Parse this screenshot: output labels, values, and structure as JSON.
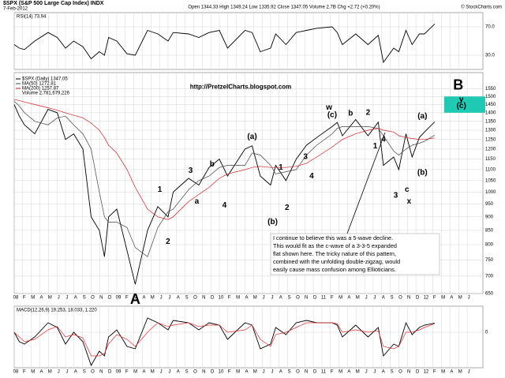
{
  "header": {
    "symbol": "$SPX (S&P 500 Large Cap Index) INDX",
    "date": "7-Feb-2012",
    "quote": "Open 1344.33  High 1349.24  Low 1335.92  Close 1347.05  Volume 2.7B  Chg +2.72 (+0.20%)",
    "source": "© StockCharts.com"
  },
  "chart_data": [
    {
      "type": "line",
      "panel": "rsi",
      "title": "RSI(14) 73.94",
      "x": [
        2008.0,
        2008.05,
        2008.1,
        2008.2,
        2008.33,
        2008.42,
        2008.5,
        2008.58,
        2008.67,
        2008.75,
        2008.83,
        2008.88,
        2008.92,
        2009.0,
        2009.1,
        2009.18,
        2009.3,
        2009.4,
        2009.5,
        2009.55,
        2009.7,
        2009.8,
        2009.9,
        2010.0,
        2010.08,
        2010.25,
        2010.32,
        2010.4,
        2010.5,
        2010.55,
        2010.65,
        2010.75,
        2010.85,
        2010.95,
        2011.1,
        2011.15,
        2011.2,
        2011.33,
        2011.45,
        2011.55,
        2011.6,
        2011.7,
        2011.75,
        2011.82,
        2011.88,
        2011.95,
        2012.0,
        2012.1
      ],
      "series": [
        {
          "name": "RSI(14)",
          "color": "#000000",
          "values": [
            45,
            40,
            38,
            50,
            62,
            55,
            40,
            50,
            42,
            25,
            35,
            30,
            55,
            50,
            32,
            30,
            65,
            60,
            50,
            62,
            60,
            55,
            62,
            65,
            40,
            65,
            62,
            35,
            40,
            60,
            45,
            62,
            65,
            68,
            70,
            62,
            45,
            60,
            45,
            58,
            20,
            40,
            35,
            65,
            45,
            60,
            60,
            74
          ]
        }
      ],
      "xlim": [
        2008.0,
        2012.57
      ],
      "ylim": [
        10,
        90
      ],
      "yticks": [
        {
          "value": 70,
          "label": "70.0"
        },
        {
          "value": 30,
          "label": "30.0"
        }
      ],
      "grid": true
    },
    {
      "type": "line",
      "panel": "price",
      "title": "$SPX (Daily) 1347.05",
      "log": true,
      "x": [
        2008.0,
        2008.05,
        2008.1,
        2008.2,
        2008.33,
        2008.42,
        2008.5,
        2008.58,
        2008.67,
        2008.75,
        2008.83,
        2008.88,
        2008.92,
        2009.0,
        2009.1,
        2009.18,
        2009.3,
        2009.4,
        2009.5,
        2009.55,
        2009.7,
        2009.8,
        2009.9,
        2010.0,
        2010.08,
        2010.25,
        2010.32,
        2010.4,
        2010.5,
        2010.55,
        2010.65,
        2010.75,
        2010.85,
        2010.95,
        2011.1,
        2011.15,
        2011.2,
        2011.33,
        2011.45,
        2011.55,
        2011.6,
        2011.7,
        2011.75,
        2011.82,
        2011.88,
        2011.95,
        2012.0,
        2012.1
      ],
      "series": [
        {
          "name": "$SPX (Daily) 1347.05",
          "color": "#000000",
          "values": [
            1450,
            1380,
            1330,
            1280,
            1420,
            1400,
            1250,
            1280,
            1200,
            900,
            850,
            760,
            900,
            930,
            780,
            676,
            850,
            940,
            900,
            1000,
            1060,
            1030,
            1110,
            1150,
            1070,
            1200,
            1217,
            1070,
            1030,
            1120,
            1050,
            1150,
            1220,
            1260,
            1320,
            1344,
            1270,
            1360,
            1270,
            1345,
            1120,
            1160,
            1100,
            1280,
            1160,
            1260,
            1290,
            1347
          ]
        },
        {
          "name": "MA(50) 1272.81",
          "color": "#444444",
          "values": [
            1470,
            1440,
            1400,
            1350,
            1330,
            1370,
            1380,
            1330,
            1280,
            1200,
            1000,
            900,
            880,
            880,
            860,
            790,
            760,
            860,
            920,
            930,
            1010,
            1050,
            1070,
            1110,
            1120,
            1120,
            1180,
            1170,
            1120,
            1080,
            1090,
            1100,
            1170,
            1220,
            1280,
            1310,
            1320,
            1320,
            1320,
            1310,
            1270,
            1190,
            1170,
            1200,
            1220,
            1230,
            1240,
            1273
          ]
        },
        {
          "name": "MA(200) 1257.87",
          "color": "#d02020",
          "values": [
            1480,
            1475,
            1465,
            1450,
            1430,
            1415,
            1400,
            1385,
            1370,
            1340,
            1300,
            1260,
            1220,
            1180,
            1100,
            1020,
            930,
            900,
            890,
            900,
            960,
            990,
            1020,
            1060,
            1080,
            1100,
            1110,
            1115,
            1110,
            1110,
            1110,
            1115,
            1130,
            1160,
            1210,
            1230,
            1250,
            1280,
            1300,
            1310,
            1300,
            1290,
            1270,
            1260,
            1255,
            1250,
            1250,
            1258
          ]
        }
      ],
      "volume_label": "Volume 2,781,679,226",
      "xlim": [
        2008.0,
        2012.57
      ],
      "ylim": [
        650,
        1660
      ],
      "yticks": [
        1550,
        1500,
        1450,
        1400,
        1350,
        1300,
        1250,
        1200,
        1150,
        1100,
        1050,
        1000,
        950,
        900,
        850,
        800,
        750,
        700,
        650
      ],
      "grid": true,
      "url": "http://PretzelCharts.blogspot.com",
      "target_zone": [
        1400,
        1500
      ],
      "annotations": [
        {
          "text": "A",
          "x": 2009.18,
          "y": 632,
          "color": "#e00000"
        },
        {
          "text": "B",
          "x": 2012.33,
          "y": 1570,
          "color": "#e00000"
        },
        {
          "text": "y",
          "x": 2012.36,
          "y": 1480,
          "color": "#1a1adc"
        },
        {
          "text": "(c)",
          "x": 2012.36,
          "y": 1440,
          "color": "#e00000"
        },
        {
          "text": "1",
          "x": 2009.42,
          "y": 1010,
          "color": "#1a1adc"
        },
        {
          "text": "2",
          "x": 2009.5,
          "y": 810,
          "color": "#1a1adc"
        },
        {
          "text": "3",
          "x": 2009.72,
          "y": 1095,
          "color": "#1a1adc"
        },
        {
          "text": "a",
          "x": 2009.78,
          "y": 960,
          "color": "#1a1adc"
        },
        {
          "text": "b",
          "x": 2009.93,
          "y": 1125,
          "color": "#1a1adc"
        },
        {
          "text": "4",
          "x": 2010.05,
          "y": 945,
          "color": "#1a1adc"
        },
        {
          "text": "(a)",
          "x": 2010.32,
          "y": 1265,
          "color": "#e00000"
        },
        {
          "text": "(b)",
          "x": 2010.52,
          "y": 880,
          "color": "#e00000"
        },
        {
          "text": "1",
          "x": 2010.6,
          "y": 1110,
          "color": "#1a1adc"
        },
        {
          "text": "2",
          "x": 2010.66,
          "y": 935,
          "color": "#1a1adc"
        },
        {
          "text": "3",
          "x": 2010.84,
          "y": 1160,
          "color": "#1a1adc"
        },
        {
          "text": "4",
          "x": 2010.9,
          "y": 1070,
          "color": "#1a1adc"
        },
        {
          "text": "w",
          "x": 2011.07,
          "y": 1430,
          "color": "#1a1adc"
        },
        {
          "text": "(c)",
          "x": 2011.1,
          "y": 1385,
          "color": "#e00000"
        },
        {
          "text": "b",
          "x": 2011.28,
          "y": 1395,
          "color": "#e00000"
        },
        {
          "text": "2",
          "x": 2011.45,
          "y": 1400,
          "color": "#1a1adc"
        },
        {
          "text": "1",
          "x": 2011.52,
          "y": 1215,
          "color": "#1a1adc"
        },
        {
          "text": "4",
          "x": 2011.6,
          "y": 1250,
          "color": "#1a1adc"
        },
        {
          "text": "3",
          "x": 2011.72,
          "y": 985,
          "color": "#1a1adc"
        },
        {
          "text": "c",
          "x": 2011.83,
          "y": 1010,
          "color": "#e00000"
        },
        {
          "text": "x",
          "x": 2011.85,
          "y": 960,
          "color": "#1a1adc"
        },
        {
          "text": "(a)",
          "x": 2011.98,
          "y": 1380,
          "color": "#e00000"
        },
        {
          "text": "(b)",
          "x": 2011.98,
          "y": 1085,
          "color": "#e00000"
        }
      ],
      "note": [
        "I continue to believe this was a 5-wave decline.",
        "This would fit as the c-wave of a 3-3-5 expanded",
        "flat shown here.  The tricky nature of this pattern,",
        "combined with the unfolding double-zigzag, would",
        "easily cause mass confusion among Ellioticians."
      ]
    },
    {
      "type": "line",
      "panel": "macd",
      "title": "MACD(12,26,9) 19.253, 18.033, 1.220",
      "x": [
        2008.0,
        2008.05,
        2008.1,
        2008.2,
        2008.33,
        2008.42,
        2008.5,
        2008.58,
        2008.67,
        2008.75,
        2008.83,
        2008.88,
        2008.92,
        2009.0,
        2009.1,
        2009.18,
        2009.3,
        2009.4,
        2009.5,
        2009.55,
        2009.7,
        2009.8,
        2009.9,
        2010.0,
        2010.08,
        2010.25,
        2010.32,
        2010.4,
        2010.5,
        2010.55,
        2010.65,
        2010.75,
        2010.85,
        2010.95,
        2011.1,
        2011.15,
        2011.2,
        2011.33,
        2011.45,
        2011.55,
        2011.6,
        2011.7,
        2011.75,
        2011.82,
        2011.88,
        2011.95,
        2012.0,
        2012.1
      ],
      "series": [
        {
          "name": "MACD",
          "color": "#000000",
          "values": [
            0,
            -20,
            -25,
            -10,
            20,
            10,
            -25,
            0,
            -20,
            -70,
            -40,
            -50,
            -10,
            5,
            -30,
            -35,
            30,
            20,
            5,
            25,
            20,
            5,
            20,
            15,
            -15,
            20,
            15,
            -35,
            -25,
            10,
            -5,
            20,
            25,
            20,
            20,
            15,
            -10,
            15,
            -10,
            10,
            -50,
            -25,
            -30,
            20,
            -5,
            10,
            15,
            19
          ]
        },
        {
          "name": "Signal",
          "color": "#e03030",
          "values": [
            0,
            -10,
            -20,
            -15,
            5,
            12,
            -10,
            -5,
            -12,
            -50,
            -50,
            -45,
            -25,
            -5,
            -15,
            -30,
            0,
            20,
            12,
            15,
            20,
            12,
            15,
            15,
            0,
            5,
            15,
            -15,
            -30,
            -5,
            0,
            10,
            20,
            20,
            20,
            18,
            0,
            5,
            0,
            3,
            -30,
            -35,
            -30,
            0,
            0,
            5,
            10,
            18
          ]
        }
      ],
      "xlim": [
        2008.0,
        2012.57
      ],
      "ylim": [
        -75,
        55
      ],
      "yticks": [
        0
      ],
      "grid": true
    }
  ],
  "xticks": [
    {
      "value": 2008.0,
      "label": "08"
    },
    {
      "value": 2008.083,
      "label": "F"
    },
    {
      "value": 2008.167,
      "label": "M"
    },
    {
      "value": 2008.25,
      "label": "A"
    },
    {
      "value": 2008.333,
      "label": "M"
    },
    {
      "value": 2008.417,
      "label": "J"
    },
    {
      "value": 2008.5,
      "label": "J"
    },
    {
      "value": 2008.583,
      "label": "A"
    },
    {
      "value": 2008.667,
      "label": "S"
    },
    {
      "value": 2008.75,
      "label": "O"
    },
    {
      "value": 2008.833,
      "label": "N"
    },
    {
      "value": 2008.917,
      "label": "D"
    },
    {
      "value": 2009.0,
      "label": "09"
    },
    {
      "value": 2009.083,
      "label": "F"
    },
    {
      "value": 2009.167,
      "label": "M"
    },
    {
      "value": 2009.25,
      "label": "A"
    },
    {
      "value": 2009.333,
      "label": "M"
    },
    {
      "value": 2009.417,
      "label": "J"
    },
    {
      "value": 2009.5,
      "label": "J"
    },
    {
      "value": 2009.583,
      "label": "A"
    },
    {
      "value": 2009.667,
      "label": "S"
    },
    {
      "value": 2009.75,
      "label": "O"
    },
    {
      "value": 2009.833,
      "label": "N"
    },
    {
      "value": 2009.917,
      "label": "D"
    },
    {
      "value": 2010.0,
      "label": "10"
    },
    {
      "value": 2010.083,
      "label": "F"
    },
    {
      "value": 2010.167,
      "label": "M"
    },
    {
      "value": 2010.25,
      "label": "A"
    },
    {
      "value": 2010.333,
      "label": "M"
    },
    {
      "value": 2010.417,
      "label": "J"
    },
    {
      "value": 2010.5,
      "label": "J"
    },
    {
      "value": 2010.583,
      "label": "A"
    },
    {
      "value": 2010.667,
      "label": "S"
    },
    {
      "value": 2010.75,
      "label": "O"
    },
    {
      "value": 2010.833,
      "label": "N"
    },
    {
      "value": 2010.917,
      "label": "D"
    },
    {
      "value": 2011.0,
      "label": "11"
    },
    {
      "value": 2011.083,
      "label": "F"
    },
    {
      "value": 2011.167,
      "label": "M"
    },
    {
      "value": 2011.25,
      "label": "A"
    },
    {
      "value": 2011.333,
      "label": "M"
    },
    {
      "value": 2011.417,
      "label": "J"
    },
    {
      "value": 2011.5,
      "label": "J"
    },
    {
      "value": 2011.583,
      "label": "A"
    },
    {
      "value": 2011.667,
      "label": "S"
    },
    {
      "value": 2011.75,
      "label": "O"
    },
    {
      "value": 2011.833,
      "label": "N"
    },
    {
      "value": 2011.917,
      "label": "D"
    },
    {
      "value": 2012.0,
      "label": "12"
    },
    {
      "value": 2012.083,
      "label": "F"
    },
    {
      "value": 2012.167,
      "label": "M"
    },
    {
      "value": 2012.25,
      "label": "A"
    },
    {
      "value": 2012.333,
      "label": "M"
    },
    {
      "value": 2012.417,
      "label": "J"
    }
  ]
}
